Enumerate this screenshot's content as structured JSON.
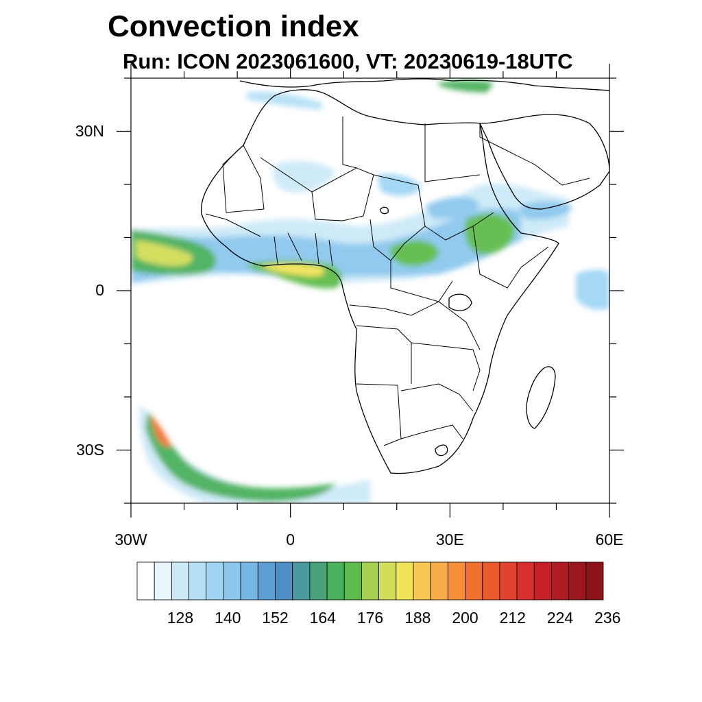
{
  "title": "Convection index",
  "subtitle": "Run: ICON 2023061600,  VT: 20230619-18UTC",
  "map": {
    "lon_range": [
      -30,
      60
    ],
    "lat_range": [
      -40,
      40
    ],
    "lat_labels": [
      {
        "lat": 30,
        "label": "30N"
      },
      {
        "lat": 0,
        "label": "0"
      },
      {
        "lat": -30,
        "label": "30S"
      }
    ],
    "lon_labels": [
      {
        "lon": -30,
        "label": "30W"
      },
      {
        "lon": 0,
        "label": "0"
      },
      {
        "lon": 30,
        "label": "30E"
      },
      {
        "lon": 60,
        "label": "60E"
      }
    ],
    "minor_lat_ticks": [
      40,
      20,
      10,
      -10,
      -20,
      -40
    ],
    "minor_lon_ticks": [
      -20,
      -10,
      10,
      20,
      40,
      50
    ]
  },
  "colorbar": {
    "labels": [
      "128",
      "140",
      "152",
      "164",
      "176",
      "188",
      "200",
      "212",
      "224",
      "236"
    ],
    "colors": [
      "#ffffff",
      "#e8f5fc",
      "#cce9f8",
      "#b6e0f6",
      "#a0d6f4",
      "#8cc8ee",
      "#78b6e6",
      "#5c9ed6",
      "#4e8fc4",
      "#4a9a9e",
      "#4aa27a",
      "#4ab05c",
      "#5ebc4c",
      "#a8d050",
      "#d2de58",
      "#f2e45a",
      "#f8c850",
      "#f8ac48",
      "#f69038",
      "#f07030",
      "#e85a2c",
      "#e04430",
      "#d8302e",
      "#c82028",
      "#b01c24",
      "#9a1820",
      "#8a1418"
    ]
  }
}
